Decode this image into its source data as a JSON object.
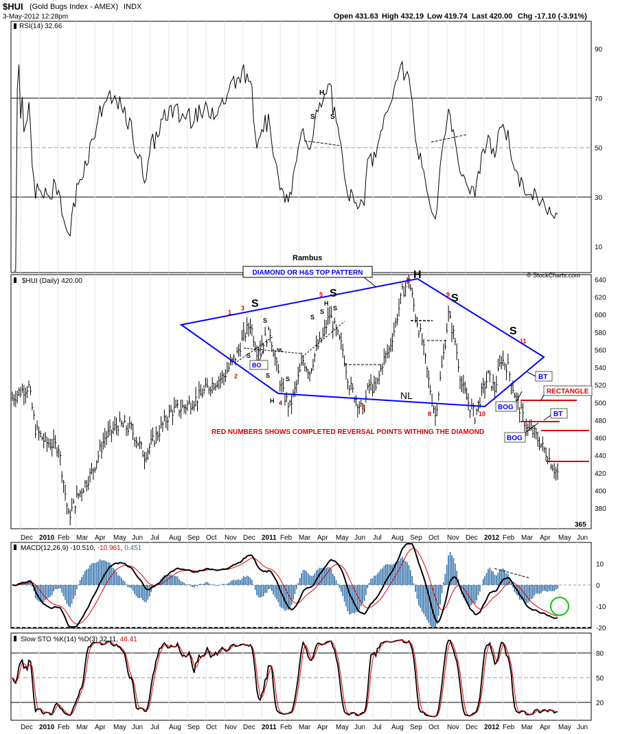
{
  "header": {
    "symbol": "$HUI",
    "name": "(Gold Bugs Index - AMEX)",
    "exchange": "INDX",
    "date": "3-May-2012 12:28pm",
    "open": "Open 431.63",
    "high": "High 432.19",
    "low": "Low 419.74",
    "last": "Last 420.00",
    "chg": "Chg -17.10 (-3.91%)",
    "watermark": "© StockCharts.com",
    "author": "Rambus"
  },
  "colors": {
    "accent_blue": "#0000ff",
    "red": "#dd0000",
    "grid": "#c0c0c0",
    "macd_hist": "#2e6ea8",
    "circle": "#00cc00"
  },
  "chart_data": [
    {
      "type": "line",
      "title": "RSI(14) 32.66",
      "ylim": [
        0,
        100
      ],
      "yticks": [
        10,
        30,
        50,
        70,
        90
      ],
      "guides": [
        30,
        50,
        70
      ],
      "months": [
        "Dec",
        "2010",
        "Feb",
        "Mar",
        "Apr",
        "May",
        "Jun",
        "Jul",
        "Aug",
        "Sep",
        "Oct",
        "Nov",
        "Dec",
        "2011",
        "Feb",
        "Mar",
        "Apr",
        "May",
        "Jun",
        "Jul",
        "Aug",
        "Sep",
        "Oct",
        "Nov",
        "Dec",
        "2012",
        "Feb",
        "Mar",
        "Apr",
        "May",
        "Jun"
      ],
      "last_value": 32.66,
      "annotations": [
        "H",
        "S",
        "S"
      ]
    },
    {
      "type": "bar",
      "title": "$HUI (Daily) 420.00",
      "ylim": [
        365,
        640
      ],
      "yticks": [
        380,
        400,
        420,
        440,
        460,
        480,
        500,
        520,
        540,
        560,
        580,
        600,
        620,
        640
      ],
      "low_label": "365",
      "anchors": [
        [
          0,
          505
        ],
        [
          4,
          512
        ],
        [
          10,
          518
        ],
        [
          14,
          470
        ],
        [
          20,
          455
        ],
        [
          28,
          450
        ],
        [
          34,
          370
        ],
        [
          40,
          395
        ],
        [
          48,
          420
        ],
        [
          56,
          460
        ],
        [
          64,
          475
        ],
        [
          72,
          470
        ],
        [
          80,
          440
        ],
        [
          88,
          465
        ],
        [
          96,
          490
        ],
        [
          104,
          495
        ],
        [
          112,
          505
        ],
        [
          120,
          520
        ],
        [
          128,
          530
        ],
        [
          136,
          555
        ],
        [
          140,
          575
        ],
        [
          144,
          590
        ],
        [
          148,
          560
        ],
        [
          152,
          570
        ],
        [
          156,
          580
        ],
        [
          160,
          540
        ],
        [
          164,
          510
        ],
        [
          168,
          495
        ],
        [
          172,
          520
        ],
        [
          176,
          548
        ],
        [
          180,
          535
        ],
        [
          184,
          560
        ],
        [
          188,
          575
        ],
        [
          192,
          600
        ],
        [
          196,
          580
        ],
        [
          200,
          560
        ],
        [
          204,
          520
        ],
        [
          208,
          505
        ],
        [
          212,
          490
        ],
        [
          216,
          520
        ],
        [
          220,
          515
        ],
        [
          224,
          545
        ],
        [
          228,
          560
        ],
        [
          232,
          590
        ],
        [
          236,
          625
        ],
        [
          240,
          640
        ],
        [
          244,
          600
        ],
        [
          248,
          570
        ],
        [
          252,
          525
        ],
        [
          256,
          485
        ],
        [
          260,
          540
        ],
        [
          264,
          600
        ],
        [
          268,
          570
        ],
        [
          272,
          520
        ],
        [
          276,
          500
        ],
        [
          280,
          485
        ],
        [
          284,
          510
        ],
        [
          288,
          530
        ],
        [
          292,
          515
        ],
        [
          296,
          550
        ],
        [
          300,
          540
        ],
        [
          304,
          510
        ],
        [
          308,
          488
        ],
        [
          312,
          470
        ],
        [
          316,
          465
        ],
        [
          320,
          452
        ],
        [
          324,
          440
        ],
        [
          328,
          425
        ],
        [
          330,
          420
        ]
      ],
      "pattern_labels": [
        "DIAMOND OR H&S TOP PATTERN",
        "H",
        "S",
        "S",
        "S",
        "S",
        "NL",
        "H",
        "S",
        "S",
        "S",
        "S",
        "NL",
        "S",
        "S",
        "S",
        "H"
      ],
      "callouts": [
        "BO",
        "BOG",
        "BT",
        "BOG",
        "BT",
        "RECTANGLE"
      ],
      "reversal_points": [
        "1",
        "2",
        "3",
        "4",
        "5",
        "6",
        "7",
        "8",
        "9",
        "10",
        "11"
      ],
      "note": "RED NUMBERS SHOWS COMPLETED REVERSAL POINTS WITHING THE DIAMOND"
    },
    {
      "type": "line",
      "title": "MACD(12,26,9)",
      "series": [
        {
          "name": "-10.510"
        },
        {
          "name": "-10.961"
        },
        {
          "name": "0.451"
        }
      ],
      "ylim": [
        -20,
        20
      ],
      "yticks": [
        -20,
        -10,
        0,
        10
      ]
    },
    {
      "type": "line",
      "title": "Slow STO %K(14) %D(3)",
      "series": [
        {
          "name": "32.11"
        },
        {
          "name": "46.41"
        }
      ],
      "ylim": [
        0,
        100
      ],
      "yticks": [
        20,
        50,
        80
      ]
    }
  ]
}
